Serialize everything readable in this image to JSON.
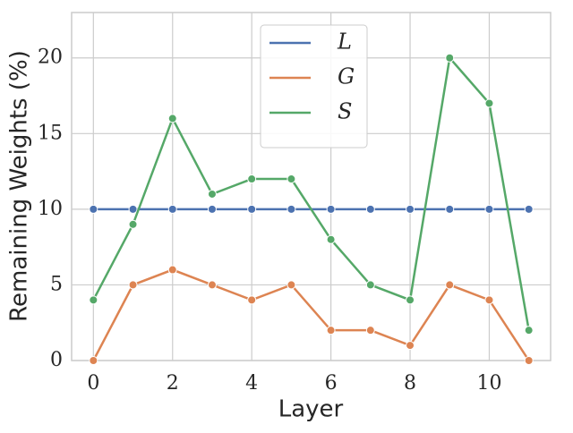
{
  "chart_data": {
    "type": "line",
    "x_label": "Layer",
    "y_label": "Remaining Weights (%)",
    "x": [
      0,
      1,
      2,
      3,
      4,
      5,
      6,
      7,
      8,
      9,
      10,
      11
    ],
    "series": [
      {
        "name": "L",
        "color": "#4c72b0",
        "values": [
          10,
          10,
          10,
          10,
          10,
          10,
          10,
          10,
          10,
          10,
          10,
          10
        ]
      },
      {
        "name": "G",
        "color": "#dd8452",
        "values": [
          0,
          5,
          6,
          5,
          4,
          5,
          2,
          2,
          1,
          5,
          4,
          0
        ]
      },
      {
        "name": "S",
        "color": "#55a868",
        "values": [
          4,
          9,
          16,
          11,
          12,
          12,
          8,
          5,
          4,
          20,
          17,
          2
        ]
      }
    ],
    "xlim": [
      -0.55,
      11.55
    ],
    "ylim": [
      0,
      23
    ],
    "xticks": [
      0,
      2,
      4,
      6,
      8,
      10
    ],
    "yticks": [
      0,
      5,
      10,
      15,
      20
    ],
    "grid": true,
    "legend": "upper center"
  }
}
